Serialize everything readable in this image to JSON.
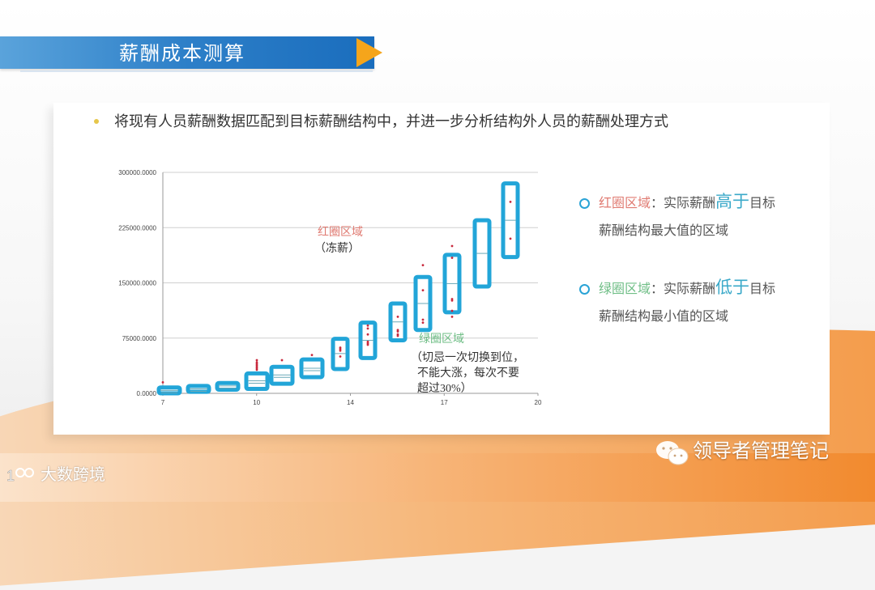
{
  "header": {
    "title": "薪酬成本测算"
  },
  "bullet": {
    "text": "将现有人员薪酬数据匹配到目标薪酬结构中，并进一步分析结构外人员的薪酬处理方式"
  },
  "annotations": {
    "red_zone_title": "红圈区域",
    "red_zone_sub": "（冻薪）",
    "green_zone_title": "绿圈区域",
    "green_zone_line1": "（切忌一次切换到位，",
    "green_zone_line2": "不能大涨，每次不要",
    "green_zone_line3": "超过30%）"
  },
  "legend": {
    "items": [
      {
        "label": "红圈区域",
        "sep": "：实际薪酬",
        "emphasis": "高于",
        "tail": "目标",
        "line2": "薪酬结构最大值的区域"
      },
      {
        "label": "绿圈区域",
        "sep": "：实际薪酬",
        "emphasis": "低于",
        "tail": "目标",
        "line2": "薪酬结构最小值的区域"
      }
    ]
  },
  "footer": {
    "brand": "领导者管理笔记",
    "logo_text": "大数跨境",
    "logo_mark": "1ꝏ"
  },
  "colors": {
    "title_bar": "#2d7fc8",
    "arrow": "#f5a51b",
    "box": "#22a5d8",
    "dot": "#c8283c",
    "red_text": "#e07b72",
    "green_text": "#6fbe86",
    "emphasis": "#3aa9c9"
  },
  "chart_data": {
    "type": "box",
    "title": "",
    "xlabel": "",
    "ylabel": "",
    "ylim": [
      0,
      300000
    ],
    "yticks": [
      "0.0000",
      "75000.0000",
      "150000.0000",
      "225000.0000",
      "300000.0000"
    ],
    "xtick_labels": [
      "7",
      "10",
      "14",
      "17",
      "20"
    ],
    "grid": true,
    "series": [
      {
        "grade": 7,
        "min": 0,
        "mid": 4000,
        "max": 8000,
        "outliers": [
          15000
        ]
      },
      {
        "grade": 8,
        "min": 2000,
        "mid": 6000,
        "max": 10000,
        "outliers": []
      },
      {
        "grade": 9,
        "min": 5000,
        "mid": 10000,
        "max": 14000,
        "outliers": []
      },
      {
        "grade": 10,
        "min": 6000,
        "mid": 17000,
        "max": 27000,
        "outliers": [
          32000,
          34000,
          36000,
          38000,
          40000,
          42000,
          45000
        ]
      },
      {
        "grade": 11,
        "min": 13000,
        "mid": 25000,
        "max": 36000,
        "outliers": [
          45000
        ]
      },
      {
        "grade": 12,
        "min": 22000,
        "mid": 34000,
        "max": 46000,
        "outliers": [
          52000
        ]
      },
      {
        "grade": 13,
        "min": 33000,
        "mid": 54000,
        "max": 74000,
        "outliers": [
          50000,
          58000,
          60000,
          62000
        ]
      },
      {
        "grade": 14,
        "min": 48000,
        "mid": 72000,
        "max": 96000,
        "outliers": [
          66000,
          68000,
          70000,
          80000,
          88000,
          92000
        ]
      },
      {
        "grade": 15,
        "min": 72000,
        "mid": 97000,
        "max": 122000,
        "outliers": [
          78000,
          80000,
          84000,
          86000,
          104000
        ]
      },
      {
        "grade": 16,
        "min": 86000,
        "mid": 122000,
        "max": 158000,
        "outliers": [
          96000,
          100000,
          140000,
          174000
        ]
      },
      {
        "grade": 17,
        "min": 110000,
        "mid": 149000,
        "max": 188000,
        "outliers": [
          104000,
          112000,
          126000,
          128000,
          184000,
          200000
        ]
      },
      {
        "grade": 18,
        "min": 145000,
        "mid": 190000,
        "max": 235000,
        "outliers": []
      },
      {
        "grade": 19,
        "min": 185000,
        "mid": 235000,
        "max": 285000,
        "outliers": [
          210000,
          260000
        ]
      }
    ]
  }
}
